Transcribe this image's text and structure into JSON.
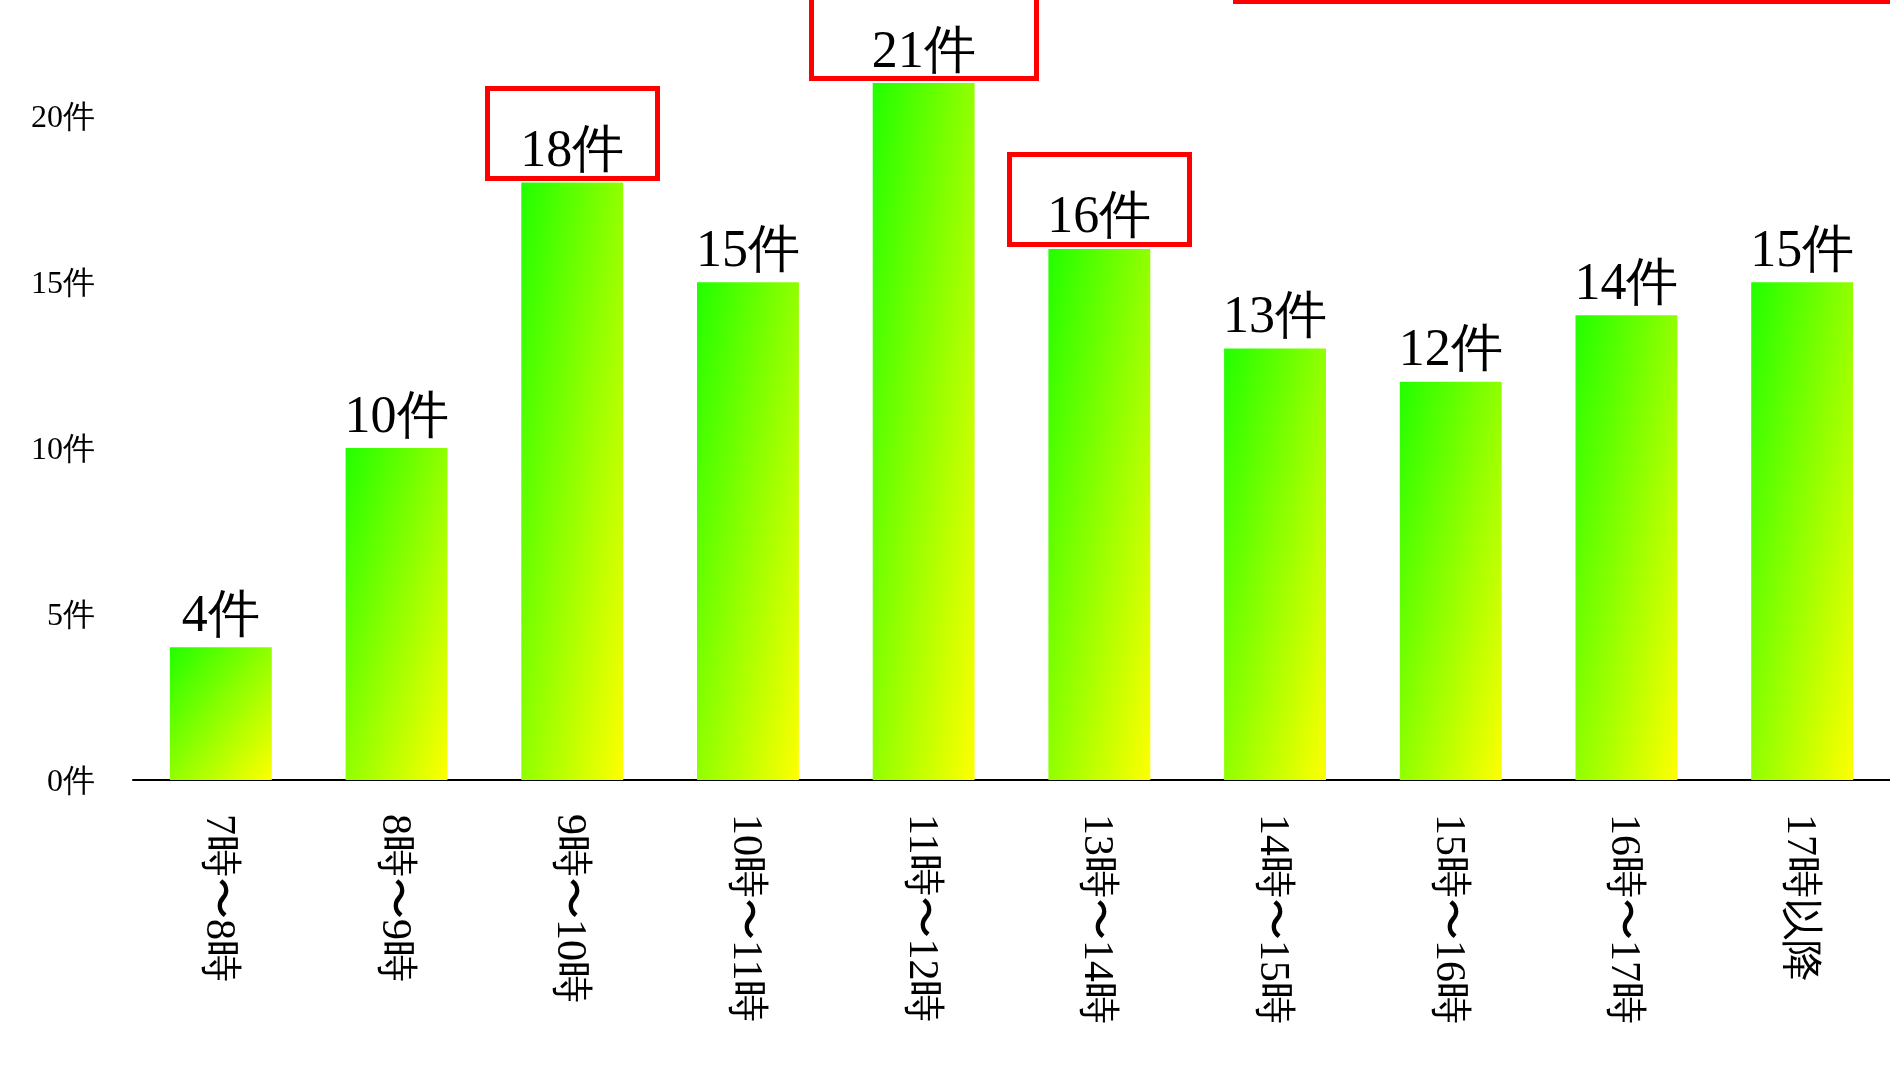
{
  "chart_data": {
    "type": "bar",
    "categories": [
      "7時〜8時",
      "8時〜9時",
      "9時〜10時",
      "10時〜11時",
      "11時〜12時",
      "13時〜14時",
      "14時〜15時",
      "15時〜16時",
      "16時〜17時",
      "17時以降"
    ],
    "values": [
      4,
      10,
      18,
      15,
      21,
      16,
      13,
      12,
      14,
      15
    ],
    "value_labels": [
      "4件",
      "10件",
      "18件",
      "15件",
      "21件",
      "16件",
      "13件",
      "12件",
      "14件",
      "15件"
    ],
    "color": "#22ff00",
    "ylim": [
      0,
      21
    ],
    "yticks": [
      {
        "value": 0,
        "label": "0件"
      },
      {
        "value": 5,
        "label": "5件"
      },
      {
        "value": 10,
        "label": "10件"
      },
      {
        "value": 15,
        "label": "15件"
      },
      {
        "value": 20,
        "label": "20件"
      }
    ],
    "grid": false
  }
}
